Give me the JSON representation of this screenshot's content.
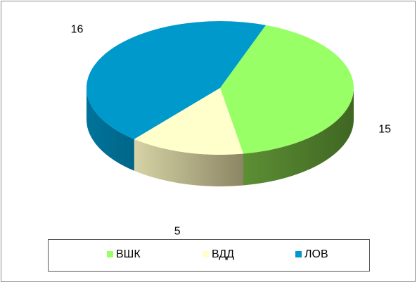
{
  "chart_data": {
    "type": "pie",
    "categories": [
      "ВШК",
      "ВДД",
      "ЛОВ"
    ],
    "values": [
      15,
      5,
      16
    ],
    "colors": [
      "#99ff66",
      "#ffffcc",
      "#0099cc"
    ],
    "legend": "bottom"
  }
}
